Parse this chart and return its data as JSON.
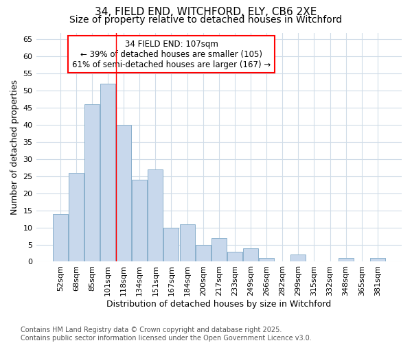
{
  "title_line1": "34, FIELD END, WITCHFORD, ELY, CB6 2XE",
  "title_line2": "Size of property relative to detached houses in Witchford",
  "xlabel": "Distribution of detached houses by size in Witchford",
  "ylabel": "Number of detached properties",
  "bar_labels": [
    "52sqm",
    "68sqm",
    "85sqm",
    "101sqm",
    "118sqm",
    "134sqm",
    "151sqm",
    "167sqm",
    "184sqm",
    "200sqm",
    "217sqm",
    "233sqm",
    "249sqm",
    "266sqm",
    "282sqm",
    "299sqm",
    "315sqm",
    "332sqm",
    "348sqm",
    "365sqm",
    "381sqm"
  ],
  "bar_values": [
    14,
    26,
    46,
    52,
    40,
    24,
    27,
    10,
    11,
    5,
    7,
    3,
    4,
    1,
    0,
    2,
    0,
    0,
    1,
    0,
    1
  ],
  "bar_color": "#c8d8ec",
  "bar_edge_color": "#8ab0cc",
  "ylim": [
    0,
    67
  ],
  "yticks": [
    0,
    5,
    10,
    15,
    20,
    25,
    30,
    35,
    40,
    45,
    50,
    55,
    60,
    65
  ],
  "red_line_x": 3.5,
  "annotation_text_line1": "34 FIELD END: 107sqm",
  "annotation_text_line2": "← 39% of detached houses are smaller (105)",
  "annotation_text_line3": "61% of semi-detached houses are larger (167) →",
  "footnote": "Contains HM Land Registry data © Crown copyright and database right 2025.\nContains public sector information licensed under the Open Government Licence v3.0.",
  "background_color": "#ffffff",
  "grid_color": "#d0dce8",
  "title_fontsize": 11,
  "subtitle_fontsize": 10,
  "axis_label_fontsize": 9,
  "tick_fontsize": 8,
  "annotation_fontsize": 8.5,
  "footnote_fontsize": 7
}
